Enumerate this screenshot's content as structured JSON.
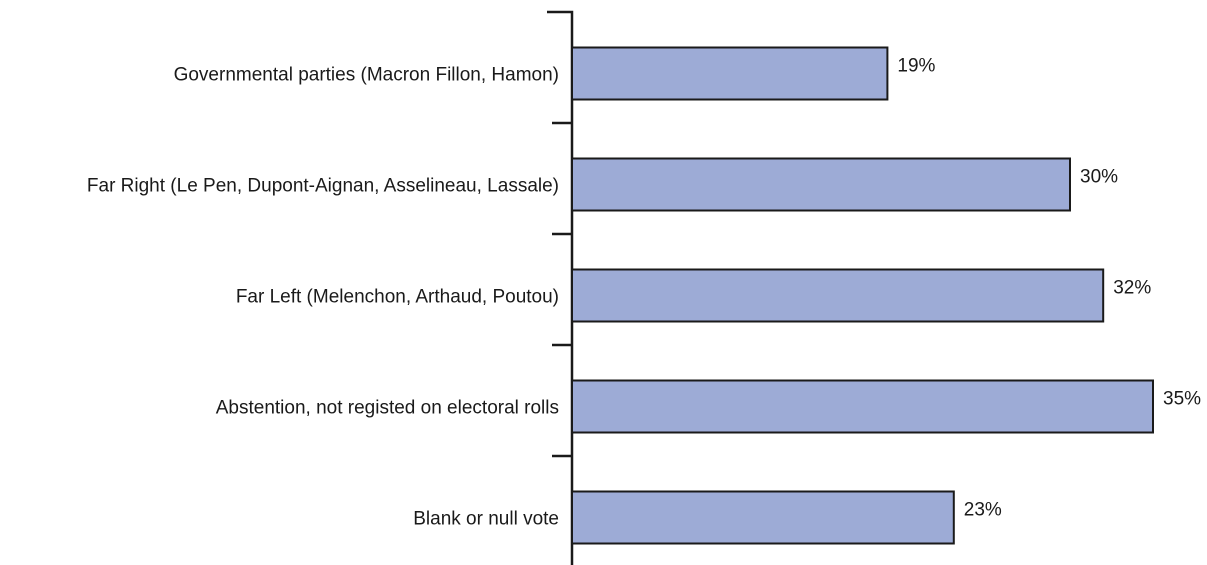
{
  "chart_data": {
    "type": "bar",
    "orientation": "horizontal",
    "title": "",
    "xlabel": "",
    "ylabel": "",
    "categories": [
      "Governmental parties (Macron Fillon, Hamon)",
      "Far Right (Le Pen, Dupont-Aignan, Asselineau, Lassale)",
      "Far Left (Melenchon, Arthaud, Poutou)",
      "Abstention, not registed on electoral rolls",
      "Blank or null vote"
    ],
    "values": [
      19,
      30,
      32,
      35,
      23
    ],
    "value_labels": [
      "19%",
      "30%",
      "32%",
      "35%",
      "23%"
    ],
    "xlim": [
      0,
      35
    ],
    "grid": false,
    "legend": "none",
    "colors": {
      "bar_fill": "#9dabd6",
      "bar_stroke": "#1a1a1a",
      "text": "#1a1a1a"
    }
  }
}
